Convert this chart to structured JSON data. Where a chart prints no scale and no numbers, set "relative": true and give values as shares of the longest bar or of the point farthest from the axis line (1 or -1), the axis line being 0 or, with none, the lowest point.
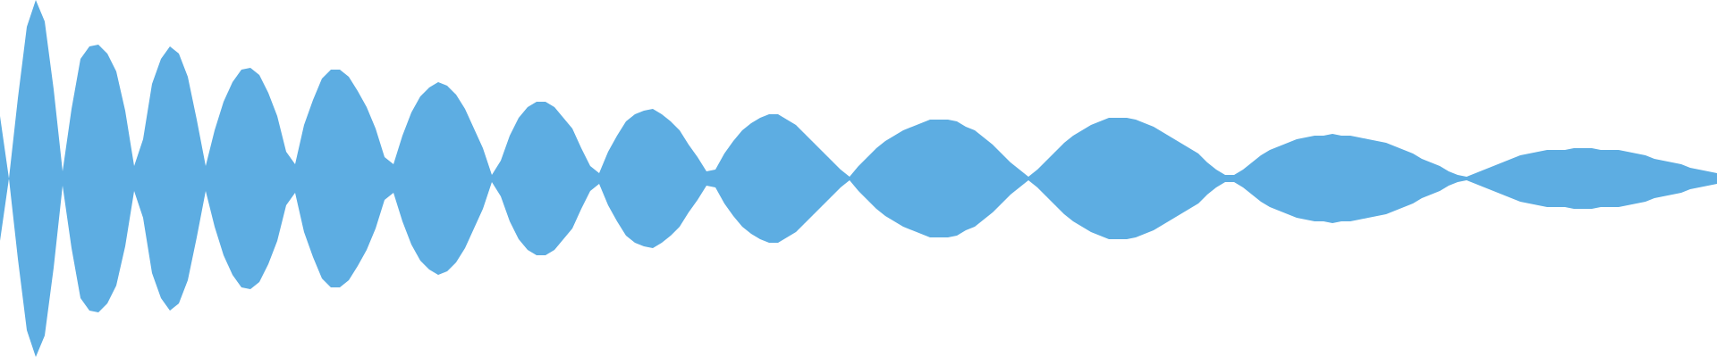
{
  "chart_data": {
    "type": "area",
    "relative": true,
    "legend": false,
    "categories": [
      null,
      null,
      null,
      null,
      null,
      null,
      null,
      null,
      null,
      null,
      null,
      null,
      null,
      null,
      null,
      null,
      null,
      null,
      null,
      null,
      null,
      null,
      null,
      null,
      null,
      null,
      null,
      null,
      null,
      null,
      null,
      null,
      null,
      null,
      null,
      null,
      null,
      null,
      null,
      null,
      null,
      null,
      null,
      null,
      null,
      null,
      null,
      null,
      null,
      null,
      null,
      null,
      null,
      null,
      null,
      null,
      null,
      null,
      null,
      null,
      null,
      null,
      null,
      null,
      null,
      null,
      null,
      null,
      null,
      null,
      null,
      null,
      null,
      null,
      null,
      null,
      null,
      null,
      null,
      null,
      null,
      null,
      null,
      null,
      null,
      null,
      null,
      null,
      null,
      null,
      null,
      null,
      null,
      null,
      null,
      null,
      null,
      null,
      null,
      null,
      null,
      null,
      null,
      null,
      null,
      null,
      null,
      null,
      null,
      null,
      null,
      null,
      null,
      null,
      null,
      null,
      null,
      null,
      null,
      null,
      null,
      null,
      null,
      null,
      null,
      null,
      null,
      null,
      null,
      null,
      null,
      null,
      null,
      null,
      null,
      null,
      null,
      null,
      null,
      null,
      null,
      null,
      null,
      null,
      null,
      null,
      null,
      null,
      null,
      null,
      null,
      null,
      null,
      null,
      null,
      null,
      null,
      null,
      null,
      null,
      null,
      null,
      null,
      null,
      null,
      null,
      null,
      null,
      null,
      null,
      null,
      null,
      null,
      null,
      null,
      null,
      null,
      null,
      null,
      null,
      null,
      null,
      null,
      null,
      null,
      null,
      null,
      null,
      null,
      null,
      null,
      null,
      null
    ],
    "series": [
      {
        "color": "#5dade2",
        "values": [
          0.35,
          0,
          0.45,
          0.85,
          1,
          0.88,
          0.5,
          0.04,
          0.39,
          0.67,
          0.74,
          0.75,
          0.7,
          0.6,
          0.38,
          0.07,
          0.22,
          0.53,
          0.67,
          0.74,
          0.7,
          0.57,
          0.33,
          0.07,
          0.27,
          0.43,
          0.54,
          0.61,
          0.62,
          0.58,
          0.48,
          0.35,
          0.15,
          0.08,
          0.3,
          0.44,
          0.56,
          0.61,
          0.61,
          0.57,
          0.49,
          0.4,
          0.28,
          0.12,
          0.08,
          0.24,
          0.37,
          0.46,
          0.51,
          0.54,
          0.52,
          0.47,
          0.39,
          0.28,
          0.17,
          0.02,
          0.1,
          0.24,
          0.34,
          0.4,
          0.43,
          0.43,
          0.4,
          0.34,
          0.28,
          0.17,
          0.07,
          0.03,
          0.15,
          0.24,
          0.32,
          0.36,
          0.38,
          0.39,
          0.36,
          0.32,
          0.27,
          0.19,
          0.12,
          0.04,
          0.05,
          0.14,
          0.21,
          0.27,
          0.31,
          0.34,
          0.36,
          0.36,
          0.33,
          0.3,
          0.25,
          0.2,
          0.15,
          0.1,
          0.05,
          0.01,
          0.07,
          0.12,
          0.17,
          0.21,
          0.24,
          0.27,
          0.29,
          0.31,
          0.33,
          0.33,
          0.33,
          0.32,
          0.29,
          0.27,
          0.23,
          0.19,
          0.14,
          0.09,
          0.05,
          0.01,
          0.05,
          0.1,
          0.15,
          0.2,
          0.24,
          0.27,
          0.3,
          0.32,
          0.34,
          0.34,
          0.34,
          0.33,
          0.31,
          0.29,
          0.26,
          0.23,
          0.2,
          0.17,
          0.14,
          0.09,
          0.05,
          0.02,
          0.02,
          0.05,
          0.09,
          0.13,
          0.16,
          0.18,
          0.2,
          0.22,
          0.23,
          0.24,
          0.24,
          0.25,
          0.24,
          0.24,
          0.23,
          0.22,
          0.21,
          0.2,
          0.18,
          0.16,
          0.14,
          0.11,
          0.09,
          0.07,
          0.04,
          0.02,
          0.01,
          0.03,
          0.05,
          0.07,
          0.09,
          0.11,
          0.13,
          0.14,
          0.15,
          0.16,
          0.16,
          0.16,
          0.17,
          0.17,
          0.17,
          0.16,
          0.16,
          0.16,
          0.15,
          0.14,
          0.13,
          0.11,
          0.1,
          0.09,
          0.08,
          0.06,
          0.05,
          0.04,
          0.03
        ]
      },
      {
        "color": "#5dade2",
        "values": [
          -0.35,
          0,
          -0.45,
          -0.85,
          -1,
          -0.88,
          -0.5,
          -0.04,
          -0.39,
          -0.67,
          -0.74,
          -0.75,
          -0.7,
          -0.6,
          -0.38,
          -0.07,
          -0.22,
          -0.53,
          -0.67,
          -0.74,
          -0.7,
          -0.57,
          -0.33,
          -0.07,
          -0.27,
          -0.43,
          -0.54,
          -0.61,
          -0.62,
          -0.58,
          -0.48,
          -0.35,
          -0.15,
          -0.08,
          -0.3,
          -0.44,
          -0.56,
          -0.61,
          -0.61,
          -0.57,
          -0.49,
          -0.4,
          -0.28,
          -0.12,
          -0.08,
          -0.24,
          -0.37,
          -0.46,
          -0.51,
          -0.54,
          -0.52,
          -0.47,
          -0.39,
          -0.28,
          -0.17,
          -0.02,
          -0.1,
          -0.24,
          -0.34,
          -0.4,
          -0.43,
          -0.43,
          -0.4,
          -0.34,
          -0.28,
          -0.17,
          -0.07,
          -0.03,
          -0.15,
          -0.24,
          -0.32,
          -0.36,
          -0.38,
          -0.39,
          -0.36,
          -0.32,
          -0.27,
          -0.19,
          -0.12,
          -0.04,
          -0.05,
          -0.14,
          -0.21,
          -0.27,
          -0.31,
          -0.34,
          -0.36,
          -0.36,
          -0.33,
          -0.3,
          -0.25,
          -0.2,
          -0.15,
          -0.1,
          -0.05,
          -0.01,
          -0.07,
          -0.12,
          -0.17,
          -0.21,
          -0.24,
          -0.27,
          -0.29,
          -0.31,
          -0.33,
          -0.33,
          -0.33,
          -0.32,
          -0.29,
          -0.27,
          -0.23,
          -0.19,
          -0.14,
          -0.09,
          -0.05,
          -0.01,
          -0.05,
          -0.1,
          -0.15,
          -0.2,
          -0.24,
          -0.27,
          -0.3,
          -0.32,
          -0.34,
          -0.34,
          -0.34,
          -0.33,
          -0.31,
          -0.29,
          -0.26,
          -0.23,
          -0.2,
          -0.17,
          -0.14,
          -0.09,
          -0.05,
          -0.02,
          -0.02,
          -0.05,
          -0.09,
          -0.13,
          -0.16,
          -0.18,
          -0.2,
          -0.22,
          -0.23,
          -0.24,
          -0.24,
          -0.25,
          -0.24,
          -0.24,
          -0.23,
          -0.22,
          -0.21,
          -0.2,
          -0.18,
          -0.16,
          -0.14,
          -0.11,
          -0.09,
          -0.07,
          -0.04,
          -0.02,
          -0.01,
          -0.03,
          -0.05,
          -0.07,
          -0.09,
          -0.11,
          -0.13,
          -0.14,
          -0.15,
          -0.16,
          -0.16,
          -0.16,
          -0.17,
          -0.17,
          -0.17,
          -0.16,
          -0.16,
          -0.16,
          -0.15,
          -0.14,
          -0.13,
          -0.11,
          -0.1,
          -0.09,
          -0.08,
          -0.06,
          -0.05,
          -0.04,
          -0.03
        ]
      }
    ]
  }
}
